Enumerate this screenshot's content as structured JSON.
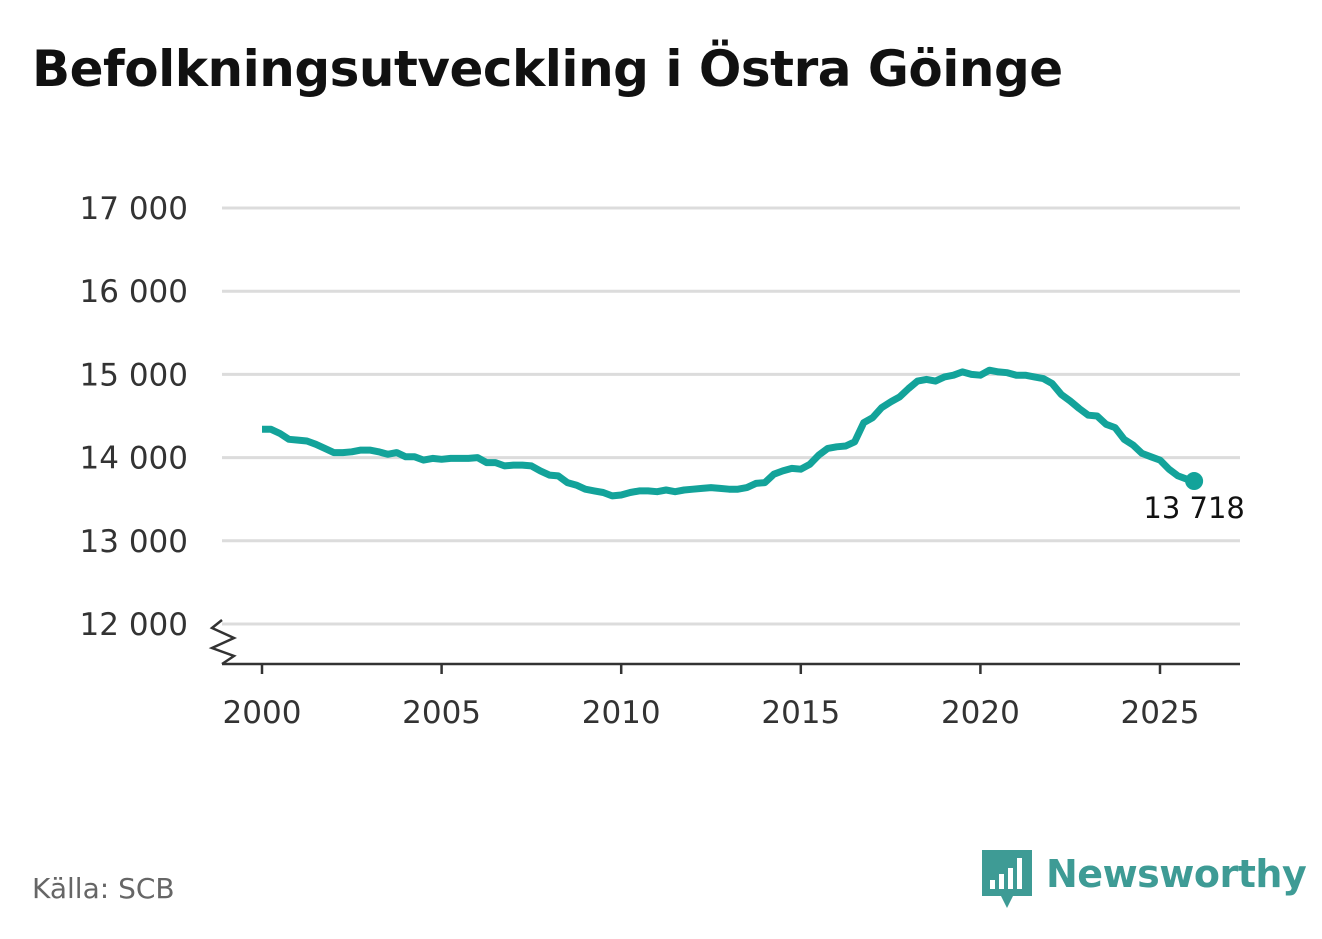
{
  "title": "Befolkningsutveckling i Östra Göinge",
  "source": "Källa: SCB",
  "brand": {
    "name": "Newsworthy",
    "icon": "newsworthy-logo-icon",
    "color": "#3e9b95"
  },
  "chart_data": {
    "type": "line",
    "title": "Befolkningsutveckling i Östra Göinge",
    "xlabel": "",
    "ylabel": "",
    "xlim": [
      1999,
      2027.2
    ],
    "ylim": [
      11500,
      17000
    ],
    "y_axis_break": true,
    "grid": true,
    "line_color": "#13a39a",
    "x_ticks": [
      {
        "value": 2000,
        "label": "2000"
      },
      {
        "value": 2005,
        "label": "2005"
      },
      {
        "value": 2010,
        "label": "2010"
      },
      {
        "value": 2015,
        "label": "2015"
      },
      {
        "value": 2020,
        "label": "2020"
      },
      {
        "value": 2025,
        "label": "2025"
      }
    ],
    "y_ticks": [
      {
        "value": 12000,
        "label": "12 000"
      },
      {
        "value": 13000,
        "label": "13 000"
      },
      {
        "value": 14000,
        "label": "14 000"
      },
      {
        "value": 15000,
        "label": "15 000"
      },
      {
        "value": 16000,
        "label": "16 000"
      },
      {
        "value": 17000,
        "label": "17 000"
      }
    ],
    "end_label": "13 718",
    "series": [
      {
        "x": [
          2000.0,
          2000.25,
          2000.5,
          2000.75,
          2001.0,
          2001.25,
          2001.5,
          2001.75,
          2002.0,
          2002.25,
          2002.5,
          2002.75,
          2003.0,
          2003.25,
          2003.5,
          2003.75,
          2004.0,
          2004.25,
          2004.5,
          2004.75,
          2005.0,
          2005.25,
          2005.5,
          2005.75,
          2006.0,
          2006.25,
          2006.5,
          2006.75,
          2007.0,
          2007.25,
          2007.5,
          2007.75,
          2008.0,
          2008.25,
          2008.5,
          2008.75,
          2009.0,
          2009.25,
          2009.5,
          2009.75,
          2010.0,
          2010.25,
          2010.5,
          2010.75,
          2011.0,
          2011.25,
          2011.5,
          2011.75,
          2012.0,
          2012.25,
          2012.5,
          2012.75,
          2013.0,
          2013.25,
          2013.5,
          2013.75,
          2014.0,
          2014.25,
          2014.5,
          2014.75,
          2015.0,
          2015.25,
          2015.5,
          2015.75,
          2016.0,
          2016.25,
          2016.5,
          2016.75,
          2017.0,
          2017.25,
          2017.5,
          2017.75,
          2018.0,
          2018.25,
          2018.5,
          2018.75,
          2019.0,
          2019.25,
          2019.5,
          2019.75,
          2020.0,
          2020.25,
          2020.5,
          2020.75,
          2021.0,
          2021.25,
          2021.5,
          2021.75,
          2022.0,
          2022.25,
          2022.5,
          2022.75,
          2023.0,
          2023.25,
          2023.5,
          2023.75,
          2024.0,
          2024.25,
          2024.5,
          2024.75,
          2025.0,
          2025.25,
          2025.5,
          2025.75,
          2025.95
        ],
        "y": [
          14340,
          14340,
          14290,
          14220,
          14210,
          14200,
          14160,
          14110,
          14060,
          14060,
          14070,
          14090,
          14090,
          14070,
          14040,
          14060,
          14010,
          14010,
          13970,
          13990,
          13980,
          13990,
          13990,
          13990,
          14000,
          13940,
          13940,
          13900,
          13910,
          13910,
          13900,
          13840,
          13790,
          13780,
          13700,
          13670,
          13620,
          13600,
          13580,
          13540,
          13550,
          13580,
          13600,
          13600,
          13590,
          13610,
          13590,
          13610,
          13620,
          13630,
          13640,
          13630,
          13620,
          13620,
          13640,
          13690,
          13700,
          13800,
          13840,
          13870,
          13860,
          13920,
          14030,
          14110,
          14130,
          14140,
          14190,
          14420,
          14480,
          14600,
          14670,
          14730,
          14830,
          14920,
          14940,
          14920,
          14970,
          14990,
          15030,
          15000,
          14990,
          15050,
          15030,
          15020,
          14990,
          14990,
          14970,
          14950,
          14890,
          14760,
          14680,
          14590,
          14510,
          14500,
          14400,
          14360,
          14220,
          14150,
          14050,
          14010,
          13970,
          13860,
          13780,
          13740,
          13718
        ]
      }
    ]
  }
}
